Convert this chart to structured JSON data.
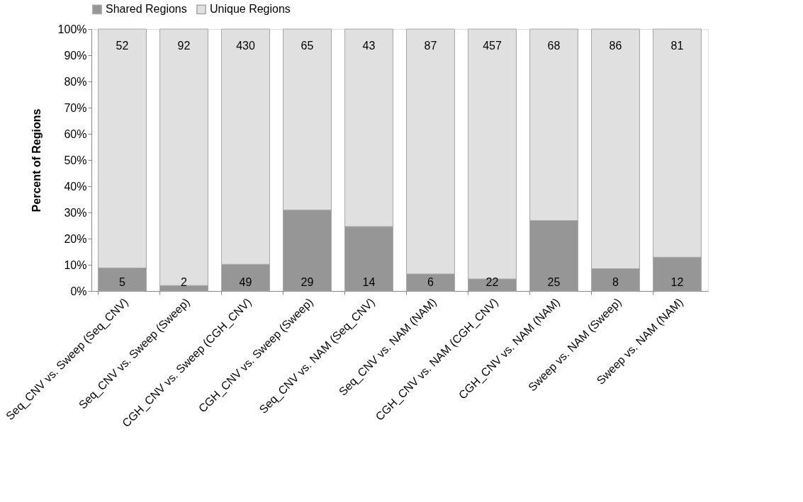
{
  "chart_data": {
    "type": "bar",
    "stacked": true,
    "ylabel": "Percent of Regions",
    "categories": [
      "Seq_CNV vs. Sweep (Seq_CNV)",
      "Seq_CNV vs. Sweep (Sweep)",
      "CGH_CNV vs. Sweep (CGH_CNV)",
      "CGH_CNV vs. Sweep (Sweep)",
      "Seq_CNV vs. NAM (Seq_CNV)",
      "Seq_CNV vs. NAM (NAM)",
      "CGH_CNV vs. NAM (CGH_CNV)",
      "CGH_CNV vs. NAM (NAM)",
      "Sweep vs. NAM (Sweep)",
      "Sweep vs. NAM (NAM)"
    ],
    "series": [
      {
        "name": "Shared Regions",
        "color": "#969696",
        "values": [
          8.8,
          2.1,
          10.2,
          30.9,
          24.6,
          6.5,
          4.6,
          26.9,
          8.5,
          12.9
        ]
      },
      {
        "name": "Unique Regions",
        "color": "#e0e0e0",
        "values": [
          91.2,
          97.9,
          89.8,
          69.1,
          75.4,
          93.5,
          95.4,
          73.1,
          91.5,
          87.1
        ]
      }
    ],
    "annotations": [
      "52",
      "92",
      "430",
      "65",
      "43",
      "87",
      "457",
      "68",
      "86",
      "81",
      "5",
      "2",
      "49",
      "29",
      "14",
      "6",
      "22",
      "25",
      "8",
      "12"
    ],
    "ylim": [
      0,
      100
    ],
    "yticks": [
      {
        "value": 0,
        "label": "0%"
      },
      {
        "value": 10,
        "label": "10%"
      },
      {
        "value": 20,
        "label": "20%"
      },
      {
        "value": 30,
        "label": "30%"
      },
      {
        "value": 40,
        "label": "40%"
      },
      {
        "value": 50,
        "label": "50%"
      },
      {
        "value": 60,
        "label": "60%"
      },
      {
        "value": 70,
        "label": "70%"
      },
      {
        "value": 80,
        "label": "80%"
      },
      {
        "value": 90,
        "label": "90%"
      },
      {
        "value": 100,
        "label": "100%"
      }
    ],
    "legend": "top",
    "grid": false
  }
}
